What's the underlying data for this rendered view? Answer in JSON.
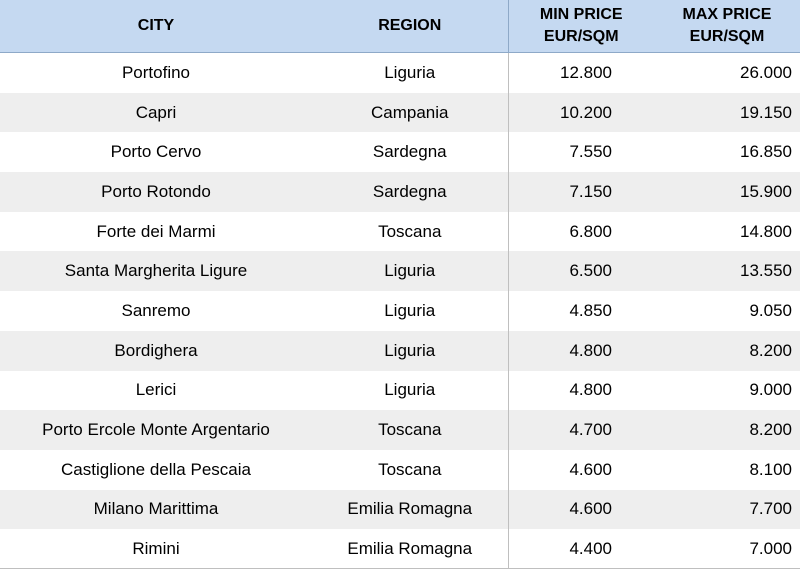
{
  "table": {
    "headers": {
      "city": "CITY",
      "region": "REGION",
      "min_price_line1": "MIN PRICE",
      "min_price_line2": "EUR/SQM",
      "max_price_line1": "MAX PRICE",
      "max_price_line2": "EUR/SQM"
    },
    "rows": [
      {
        "city": "Portofino",
        "region": "Liguria",
        "min": "12.800",
        "max": "26.000"
      },
      {
        "city": "Capri",
        "region": "Campania",
        "min": "10.200",
        "max": "19.150"
      },
      {
        "city": "Porto Cervo",
        "region": "Sardegna",
        "min": "7.550",
        "max": "16.850"
      },
      {
        "city": "Porto Rotondo",
        "region": "Sardegna",
        "min": "7.150",
        "max": "15.900"
      },
      {
        "city": "Forte dei Marmi",
        "region": "Toscana",
        "min": "6.800",
        "max": "14.800"
      },
      {
        "city": "Santa Margherita Ligure",
        "region": "Liguria",
        "min": "6.500",
        "max": "13.550"
      },
      {
        "city": "Sanremo",
        "region": "Liguria",
        "min": "4.850",
        "max": "9.050"
      },
      {
        "city": "Bordighera",
        "region": "Liguria",
        "min": "4.800",
        "max": "8.200"
      },
      {
        "city": "Lerici",
        "region": "Liguria",
        "min": "4.800",
        "max": "9.000"
      },
      {
        "city": "Porto Ercole Monte Argentario",
        "region": "Toscana",
        "min": "4.700",
        "max": "8.200"
      },
      {
        "city": "Castiglione della Pescaia",
        "region": "Toscana",
        "min": "4.600",
        "max": "8.100"
      },
      {
        "city": "Milano Marittima",
        "region": "Emilia Romagna",
        "min": "4.600",
        "max": "7.700"
      },
      {
        "city": "Rimini",
        "region": "Emilia Romagna",
        "min": "4.400",
        "max": "7.000"
      }
    ]
  },
  "colors": {
    "header_bg": "#c5d9f1",
    "stripe_bg": "#eeeeee"
  }
}
